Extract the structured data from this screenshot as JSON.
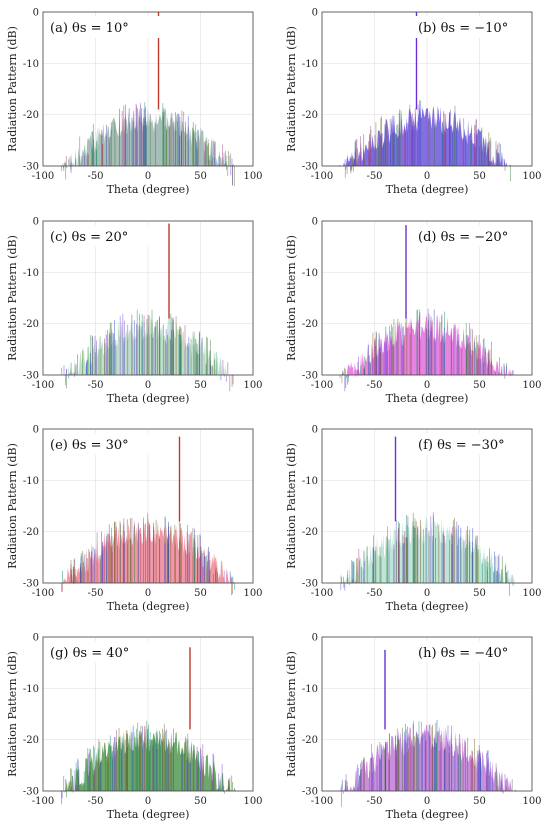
{
  "chart_data": [
    {
      "type": "area",
      "panel": "a",
      "steer_deg": 10,
      "label": "(a) θs = 10°",
      "xlabel": "Theta (degree)",
      "ylabel": "Radiation Pattern (dB)",
      "xlim": [
        -100,
        100
      ],
      "ylim": [
        -30,
        0
      ],
      "xticks": [
        -100,
        -50,
        0,
        50,
        100
      ],
      "yticks": [
        0,
        -10,
        -20,
        -30
      ],
      "grid": true,
      "main_lobe_peak_db": 0,
      "sidelobe_peak_db": -18,
      "fill_color": "#8aa7a0"
    },
    {
      "type": "area",
      "panel": "b",
      "steer_deg": -10,
      "label": "(b) θs = −10°",
      "xlabel": "Theta (degree)",
      "ylabel": "Radiation Pattern (dB)",
      "xlim": [
        -100,
        100
      ],
      "ylim": [
        -30,
        0
      ],
      "xticks": [
        -100,
        -50,
        0,
        50,
        100
      ],
      "yticks": [
        0,
        -10,
        -20,
        -30
      ],
      "grid": true,
      "main_lobe_peak_db": 0,
      "sidelobe_peak_db": -18,
      "fill_color": "#5a3fd8"
    },
    {
      "type": "area",
      "panel": "c",
      "steer_deg": 20,
      "label": "(c) θs = 20°",
      "xlabel": "Theta (degree)",
      "ylabel": "Radiation Pattern (dB)",
      "xlim": [
        -100,
        100
      ],
      "ylim": [
        -30,
        0
      ],
      "xticks": [
        -100,
        -50,
        0,
        50,
        100
      ],
      "yticks": [
        0,
        -10,
        -20,
        -30
      ],
      "grid": true,
      "main_lobe_peak_db": -0.5,
      "sidelobe_peak_db": -18,
      "fill_color": "#a9d3b5"
    },
    {
      "type": "area",
      "panel": "d",
      "steer_deg": -20,
      "label": "(d) θs = −20°",
      "xlabel": "Theta (degree)",
      "ylabel": "Radiation Pattern (dB)",
      "xlim": [
        -100,
        100
      ],
      "ylim": [
        -30,
        0
      ],
      "xticks": [
        -100,
        -50,
        0,
        50,
        100
      ],
      "yticks": [
        0,
        -10,
        -20,
        -30
      ],
      "grid": true,
      "main_lobe_peak_db": -0.8,
      "sidelobe_peak_db": -18,
      "fill_color": "#e05ad8"
    },
    {
      "type": "area",
      "panel": "e",
      "steer_deg": 30,
      "label": "(e) θs = 30°",
      "xlabel": "Theta (degree)",
      "ylabel": "Radiation Pattern (dB)",
      "xlim": [
        -100,
        100
      ],
      "ylim": [
        -30,
        0
      ],
      "xticks": [
        -100,
        -50,
        0,
        50,
        100
      ],
      "yticks": [
        0,
        -10,
        -20,
        -30
      ],
      "grid": true,
      "main_lobe_peak_db": -1.5,
      "sidelobe_peak_db": -17,
      "fill_color": "#ec7585"
    },
    {
      "type": "area",
      "panel": "f",
      "steer_deg": -30,
      "label": "(f) θs = −30°",
      "xlabel": "Theta (degree)",
      "ylabel": "Radiation Pattern (dB)",
      "xlim": [
        -100,
        100
      ],
      "ylim": [
        -30,
        0
      ],
      "xticks": [
        -100,
        -50,
        0,
        50,
        100
      ],
      "yticks": [
        0,
        -10,
        -20,
        -30
      ],
      "grid": true,
      "main_lobe_peak_db": -1.5,
      "sidelobe_peak_db": -17,
      "fill_color": "#a8dcc8"
    },
    {
      "type": "area",
      "panel": "g",
      "steer_deg": 40,
      "label": "(g) θs = 40°",
      "xlabel": "Theta (degree)",
      "ylabel": "Radiation Pattern (dB)",
      "xlim": [
        -100,
        100
      ],
      "ylim": [
        -30,
        0
      ],
      "xticks": [
        -100,
        -50,
        0,
        50,
        100
      ],
      "yticks": [
        0,
        -10,
        -20,
        -30
      ],
      "grid": true,
      "main_lobe_peak_db": -2,
      "sidelobe_peak_db": -17,
      "fill_color": "#3b8a3a"
    },
    {
      "type": "area",
      "panel": "h",
      "steer_deg": -40,
      "label": "(h) θs = −40°",
      "xlabel": "Theta (degree)",
      "ylabel": "Radiation Pattern (dB)",
      "xlim": [
        -100,
        100
      ],
      "ylim": [
        -30,
        0
      ],
      "xticks": [
        -100,
        -50,
        0,
        50,
        100
      ],
      "yticks": [
        0,
        -10,
        -20,
        -30
      ],
      "grid": true,
      "main_lobe_peak_db": -2.5,
      "sidelobe_peak_db": -17,
      "fill_color": "#b56ad2"
    }
  ]
}
